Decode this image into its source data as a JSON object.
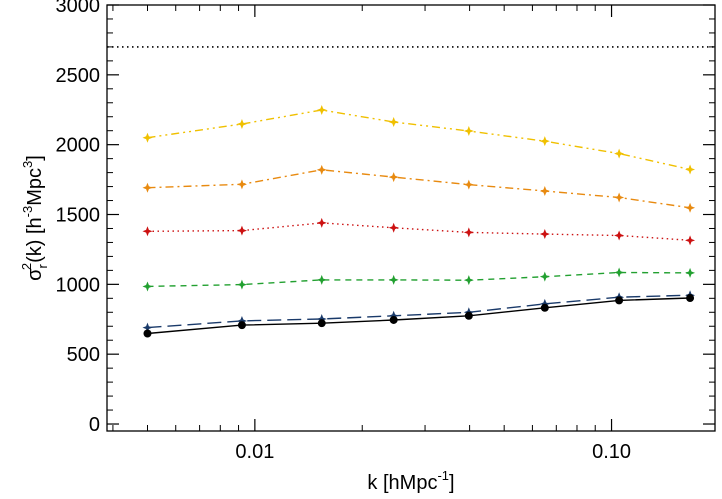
{
  "chart_data": {
    "type": "line",
    "xlabel": {
      "base": "k [hMpc",
      "sup": "-1",
      "tail": "]"
    },
    "ylabel": {
      "sigma": "σ",
      "sub": "r",
      "sup2": "2",
      "mid": "(k) [h",
      "sup3m": "-3",
      "mpc": "Mpc",
      "sup3": "3",
      "tail": "]"
    },
    "xscale": "log",
    "xlim": [
      0.00385,
      0.195
    ],
    "ylim": [
      -50,
      3000
    ],
    "xticks": [
      {
        "value": 0.01,
        "label": "0.01"
      },
      {
        "value": 0.1,
        "label": "0.10"
      }
    ],
    "yticks": [
      0,
      500,
      1000,
      1500,
      2000,
      2500,
      3000
    ],
    "ytick_labels": [
      "0",
      "500",
      "1000",
      "1500",
      "2000",
      "2500",
      "3000"
    ],
    "reference_line": {
      "y": 2700,
      "color": "#000000",
      "style": "dotted"
    },
    "x": [
      0.005,
      0.0092,
      0.0154,
      0.0245,
      0.0398,
      0.065,
      0.105,
      0.166
    ],
    "series": [
      {
        "color": "#f0c000",
        "style": "dashdotdot",
        "marker": "star",
        "values": [
          2050,
          2148,
          2248,
          2162,
          2098,
          2025,
          1936,
          1822
        ]
      },
      {
        "color": "#e88a10",
        "style": "dashdot",
        "marker": "star",
        "values": [
          1692,
          1716,
          1820,
          1768,
          1714,
          1668,
          1622,
          1548
        ]
      },
      {
        "color": "#cc1111",
        "style": "dotted",
        "marker": "star",
        "values": [
          1380,
          1385,
          1440,
          1405,
          1372,
          1360,
          1350,
          1315
        ]
      },
      {
        "color": "#22a030",
        "style": "dashed",
        "marker": "star",
        "values": [
          985,
          998,
          1032,
          1032,
          1030,
          1055,
          1085,
          1082
        ]
      },
      {
        "color": "#1a3a6a",
        "style": "longdash",
        "marker": "star",
        "values": [
          690,
          738,
          752,
          775,
          800,
          860,
          908,
          922
        ]
      },
      {
        "color": "#000000",
        "style": "solid",
        "marker": "circle",
        "values": [
          648,
          708,
          722,
          745,
          775,
          832,
          885,
          902
        ]
      }
    ]
  }
}
